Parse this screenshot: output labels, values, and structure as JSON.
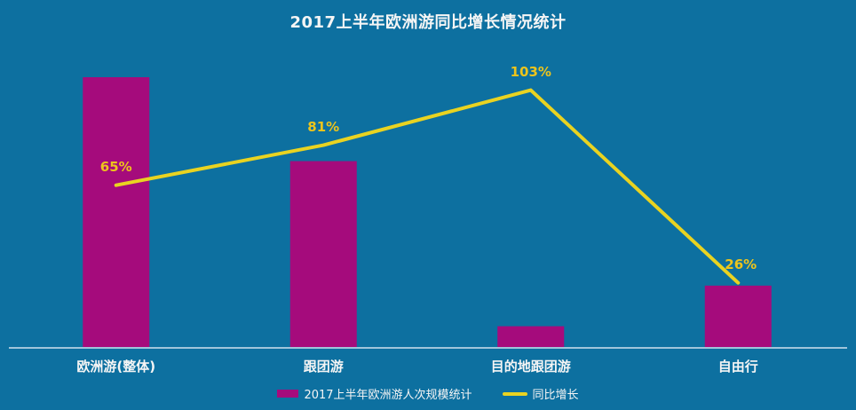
{
  "title": "2017上半年欧洲游同比增长情况统计",
  "colors": {
    "background": "#0d70a0",
    "bar": "#a50b7c",
    "line": "#e9d321",
    "value_label": "#edc41c",
    "text": "#f5f5f5",
    "axis": "#9fc5db"
  },
  "legend": {
    "bar_label": "2017上半年欧洲游人次规模统计",
    "line_label": "同比增长"
  },
  "chart_data": {
    "type": "bar+line",
    "title": "2017上半年欧洲游同比增长情况统计",
    "categories": [
      "欧洲游(整体)",
      "跟团游",
      "目的地跟团游",
      "自由行"
    ],
    "series": [
      {
        "name": "2017上半年欧洲游人次规模统计",
        "type": "bar",
        "note": "no value axis shown; bar heights estimated relative to tallest bar = 100",
        "values": [
          100,
          69,
          8,
          23
        ]
      },
      {
        "name": "同比增长",
        "type": "line",
        "values": [
          65,
          81,
          103,
          26
        ],
        "labels": [
          "65%",
          "81%",
          "103%",
          "26%"
        ]
      }
    ],
    "xlabel": "",
    "ylabel": "",
    "grid": false,
    "value_axis_visible": false,
    "legend_position": "bottom"
  }
}
